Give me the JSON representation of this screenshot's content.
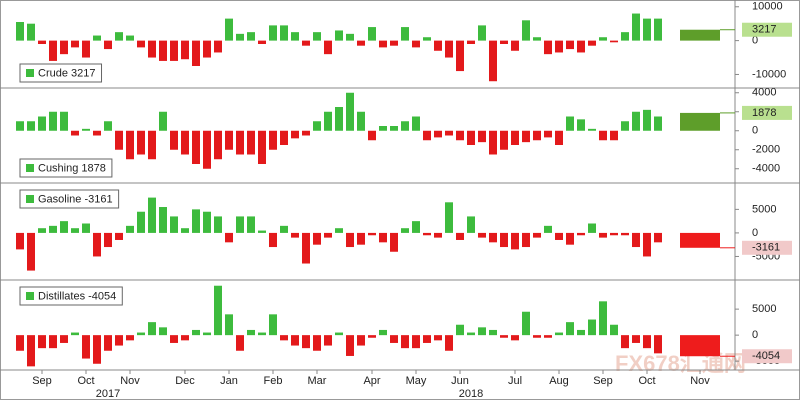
{
  "chart_data": [
    {
      "type": "bar",
      "series": [
        {
          "name": "Crude",
          "values": [
            5500,
            5000,
            -1000,
            -6000,
            -4000,
            -2000,
            -5000,
            1500,
            -2500,
            2500,
            1500,
            -2000,
            -5000,
            -6000,
            -6000,
            -5500,
            -7500,
            -5000,
            -3500,
            6500,
            2000,
            2500,
            -1000,
            4500,
            4500,
            2500,
            -1500,
            2500,
            -4000,
            3000,
            2000,
            -1500,
            4000,
            -2000,
            -1500,
            4000,
            -2000,
            1000,
            -3000,
            -5000,
            -9000,
            -1000,
            4500,
            -12000,
            -1000,
            -3000,
            6000,
            1000,
            -4000,
            -3500,
            -2500,
            -3500,
            -1500,
            1000,
            -500,
            2500,
            8000,
            6500,
            6500,
            3217
          ]
        }
      ],
      "ylim": [
        -14000,
        12000
      ],
      "yticks": [
        10000,
        0,
        -10000
      ],
      "legend": "lower left",
      "pos_color": "#3dbb3d",
      "neg_color": "#e3191b",
      "last_color": "#5e9e2a",
      "last_label_color": "#b9e08f"
    },
    {
      "type": "bar",
      "series": [
        {
          "name": "Cushing",
          "values": [
            1000,
            1000,
            1500,
            2000,
            2000,
            -500,
            200,
            -500,
            1000,
            -2000,
            -3000,
            -2500,
            -3000,
            2000,
            -2000,
            -2500,
            -3500,
            -4000,
            -3000,
            -2000,
            -2500,
            -2500,
            -3500,
            -2000,
            -1500,
            -800,
            -500,
            1000,
            2000,
            2500,
            4000,
            2000,
            -1000,
            500,
            500,
            1000,
            1500,
            -1000,
            -700,
            -500,
            -1000,
            -1500,
            -1200,
            -2500,
            -2000,
            -1500,
            -1200,
            -1000,
            -700,
            -1500,
            1500,
            1200,
            200,
            -1000,
            -1000,
            1000,
            2000,
            2200,
            1500,
            1878
          ]
        }
      ],
      "ylim": [
        -5500,
        4500
      ],
      "yticks": [
        4000,
        2000,
        0,
        -2000,
        -4000
      ],
      "legend": "lower left",
      "pos_color": "#3dbb3d",
      "neg_color": "#e3191b",
      "last_color": "#5e9e2a",
      "last_label_color": "#b9e08f"
    },
    {
      "type": "bar",
      "series": [
        {
          "name": "Gasoline",
          "values": [
            -3500,
            -8000,
            1000,
            1500,
            2500,
            1000,
            2000,
            -5000,
            -3000,
            -1500,
            1500,
            4500,
            7500,
            5500,
            3500,
            1000,
            5000,
            4500,
            3500,
            -2000,
            3500,
            3500,
            500,
            -3000,
            1500,
            -1000,
            -6500,
            -2500,
            -1000,
            1000,
            -3000,
            -2500,
            -500,
            -2000,
            -4000,
            1000,
            2500,
            -500,
            -1000,
            6500,
            -1500,
            3500,
            -1000,
            -2000,
            -3000,
            -3500,
            -3000,
            -1000,
            1500,
            -1500,
            -2500,
            -500,
            2000,
            -1000,
            -500,
            -500,
            -3000,
            -5000,
            -2000,
            -3161
          ]
        }
      ],
      "ylim": [
        -10000,
        10600
      ],
      "yticks": [
        5000,
        0,
        -5000
      ],
      "legend": "upper left",
      "pos_color": "#3dbb3d",
      "neg_color": "#e3191b",
      "last_color": "#ee1c1c",
      "last_label_color": "#f1c9c9"
    },
    {
      "type": "bar",
      "series": [
        {
          "name": "Distillates",
          "values": [
            -3000,
            -6000,
            -2500,
            -2500,
            -1500,
            500,
            -4500,
            -5500,
            -3000,
            -2000,
            -1000,
            500,
            2500,
            1500,
            -1500,
            -1000,
            1000,
            500,
            9500,
            4000,
            -3000,
            1000,
            500,
            4000,
            -1000,
            -2000,
            -2500,
            -3000,
            -2000,
            500,
            -4000,
            -2000,
            -500,
            1000,
            -1500,
            -2500,
            -2500,
            -1500,
            -1000,
            -3000,
            2000,
            500,
            1500,
            1000,
            -500,
            -1000,
            4500,
            -500,
            -500,
            500,
            2500,
            1000,
            3000,
            6500,
            2000,
            -2500,
            -1500,
            -2500,
            -3500,
            -4054
          ]
        }
      ],
      "ylim": [
        -6700,
        10600
      ],
      "yticks": [
        5000,
        0,
        -5000
      ],
      "legend": "upper left",
      "pos_color": "#3dbb3d",
      "neg_color": "#e3191b",
      "last_color": "#ee1c1c",
      "last_label_color": "#f1c9c9",
      "categories": [
        null,
        null,
        "Sep",
        null,
        null,
        null,
        "Oct",
        null,
        null,
        null,
        "Nov",
        null,
        null,
        null,
        null,
        "Dec",
        null,
        null,
        null,
        "Jan",
        null,
        null,
        null,
        "Feb",
        null,
        null,
        null,
        "Mar",
        null,
        null,
        null,
        null,
        "Apr",
        null,
        null,
        null,
        "May",
        null,
        null,
        null,
        "Jun",
        null,
        null,
        null,
        null,
        "Jul",
        null,
        null,
        null,
        "Aug",
        null,
        null,
        null,
        "Sep",
        null,
        null,
        null,
        "Oct",
        null,
        "Nov"
      ],
      "years": [
        "2017",
        "2018"
      ]
    }
  ],
  "watermark": "FX678汇通网"
}
